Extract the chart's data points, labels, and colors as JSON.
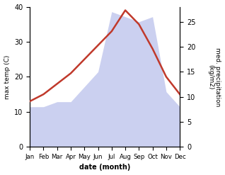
{
  "months": [
    "Jan",
    "Feb",
    "Mar",
    "Apr",
    "May",
    "Jun",
    "Jul",
    "Aug",
    "Sep",
    "Oct",
    "Nov",
    "Dec"
  ],
  "temp_max": [
    13,
    15,
    18,
    21,
    25,
    29,
    33,
    39,
    35,
    28,
    20,
    15
  ],
  "precip": [
    8,
    8,
    9,
    9,
    12,
    15,
    27,
    26,
    25,
    26,
    11,
    8
  ],
  "temp_color": "#c0392b",
  "precip_color": "#b0b8e8",
  "left_ylim": [
    0,
    40
  ],
  "right_ylim": [
    0,
    28
  ],
  "right_yticks": [
    0,
    5,
    10,
    15,
    20,
    25
  ],
  "left_yticks": [
    0,
    10,
    20,
    30,
    40
  ],
  "xlabel": "date (month)",
  "ylabel_left": "max temp (C)",
  "ylabel_right": "med. precipitation\n(kg/m2)",
  "bg_color": "#ffffff"
}
